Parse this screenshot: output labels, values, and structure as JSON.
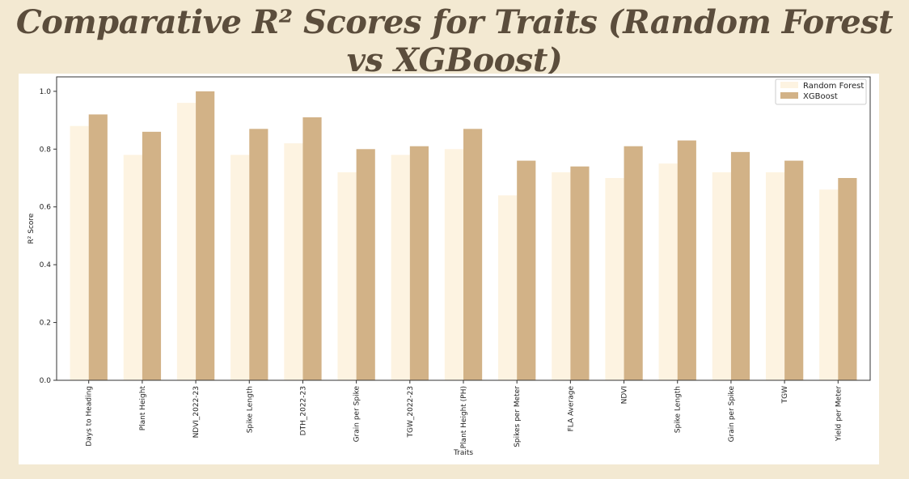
{
  "page": {
    "title": "Comparative R² Scores for Traits (Random Forest vs XGBoost)"
  },
  "chart_data": {
    "type": "bar",
    "title": "",
    "xlabel": "Traits",
    "ylabel": "R² Score",
    "ylim": [
      0,
      1.05
    ],
    "yticks": [
      "0.0",
      "0.2",
      "0.4",
      "0.6",
      "0.8",
      "1.0"
    ],
    "grid": false,
    "legend_position": "top-right",
    "categories": [
      "Days to Heading",
      "Plant Height",
      "NDVI_2022-23",
      "Spike Length",
      "DTH_2022-23",
      "Grain per Spike",
      "TGW_2022-23",
      "Plant Height (PH)",
      "Spikes per Meter",
      "FLA Average",
      "NDVI",
      "Spike Length",
      "Grain per Spike",
      "TGW",
      "Yield per Meter"
    ],
    "series": [
      {
        "name": "Random Forest",
        "color": "#fdf3e1",
        "values": [
          0.88,
          0.78,
          0.96,
          0.78,
          0.82,
          0.72,
          0.78,
          0.8,
          0.64,
          0.72,
          0.7,
          0.75,
          0.72,
          0.72,
          0.66
        ]
      },
      {
        "name": "XGBoost",
        "color": "#d2b287",
        "values": [
          0.92,
          0.86,
          1.0,
          0.87,
          0.91,
          0.8,
          0.81,
          0.87,
          0.76,
          0.74,
          0.81,
          0.83,
          0.79,
          0.76,
          0.7
        ]
      }
    ]
  }
}
